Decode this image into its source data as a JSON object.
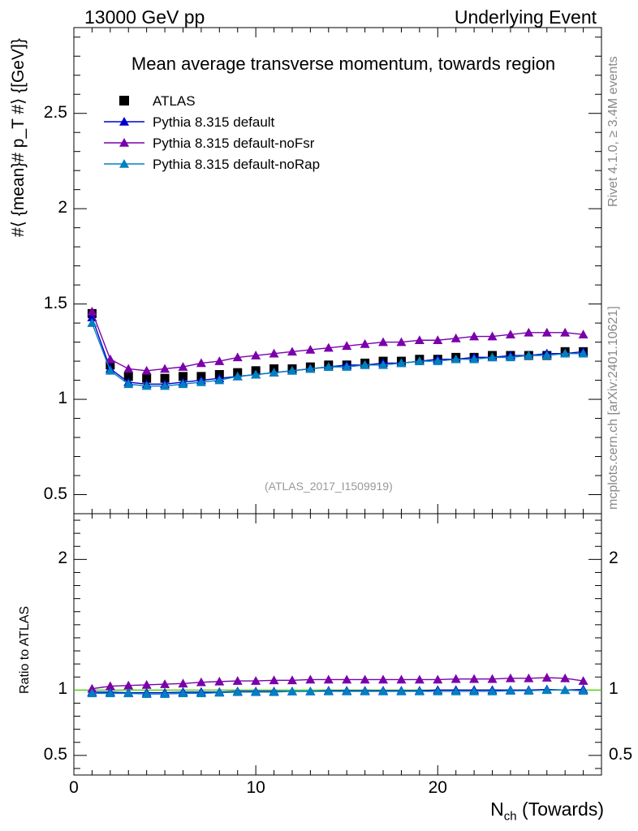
{
  "header": {
    "left": "13000 GeV pp",
    "right": "Underlying Event"
  },
  "side_text": {
    "top": "Rivet 4.1.0, ≥ 3.4M events",
    "bottom": "mcplots.cern.ch [arXiv:2401.10621]"
  },
  "reference_label": "(ATLAS_2017_I1509919)",
  "chart_data": {
    "type": "scatter",
    "title": "Mean average transverse momentum, towards region",
    "xlabel_main": "N",
    "xlabel_sub": "ch",
    "xlabel_suffix": " (Towards)",
    "ylabel": "#⟨ {mean}# p_T #⟩ {[GeV]}",
    "ratio_ylabel": "Ratio to ATLAS",
    "xlim": [
      0,
      29
    ],
    "ylim": [
      0.4,
      2.95
    ],
    "ratio_ylim": [
      0.35,
      2.35
    ],
    "x_ticks": [
      0,
      10,
      20
    ],
    "x_tick_labels": [
      "0",
      "10",
      "20"
    ],
    "y_ticks": [
      0.5,
      1,
      1.5,
      2,
      2.5
    ],
    "y_tick_labels": [
      "0.5",
      "1",
      "1.5",
      "2",
      "2.5"
    ],
    "ratio_ticks": [
      0.5,
      1,
      2
    ],
    "ratio_tick_labels": [
      "0.5",
      "1",
      "2"
    ],
    "x": [
      1,
      2,
      3,
      4,
      5,
      6,
      7,
      8,
      9,
      10,
      11,
      12,
      13,
      14,
      15,
      16,
      17,
      18,
      19,
      20,
      21,
      22,
      23,
      24,
      25,
      26,
      27,
      28
    ],
    "series": [
      {
        "name": "ATLAS",
        "color": "#000000",
        "marker": "square",
        "values": [
          1.45,
          1.18,
          1.12,
          1.11,
          1.11,
          1.12,
          1.12,
          1.13,
          1.14,
          1.15,
          1.16,
          1.16,
          1.17,
          1.18,
          1.18,
          1.19,
          1.2,
          1.2,
          1.21,
          1.21,
          1.22,
          1.22,
          1.23,
          1.23,
          1.23,
          1.23,
          1.25,
          1.25
        ]
      },
      {
        "name": "Pythia 8.315 default",
        "color": "#0000cc",
        "marker": "triangle",
        "values": [
          1.43,
          1.16,
          1.09,
          1.08,
          1.08,
          1.09,
          1.1,
          1.11,
          1.12,
          1.13,
          1.14,
          1.15,
          1.16,
          1.17,
          1.18,
          1.18,
          1.19,
          1.19,
          1.2,
          1.21,
          1.21,
          1.22,
          1.22,
          1.23,
          1.23,
          1.24,
          1.24,
          1.25
        ]
      },
      {
        "name": "Pythia 8.315 default-noFsr",
        "color": "#7a00aa",
        "marker": "triangle",
        "values": [
          1.46,
          1.21,
          1.16,
          1.15,
          1.16,
          1.17,
          1.19,
          1.2,
          1.22,
          1.23,
          1.24,
          1.25,
          1.26,
          1.27,
          1.28,
          1.29,
          1.3,
          1.3,
          1.31,
          1.31,
          1.32,
          1.33,
          1.33,
          1.34,
          1.35,
          1.35,
          1.35,
          1.34
        ]
      },
      {
        "name": "Pythia 8.315 default-noRap",
        "color": "#0080c0",
        "marker": "triangle",
        "values": [
          1.4,
          1.15,
          1.08,
          1.07,
          1.07,
          1.08,
          1.09,
          1.1,
          1.12,
          1.13,
          1.14,
          1.15,
          1.16,
          1.17,
          1.17,
          1.18,
          1.18,
          1.19,
          1.2,
          1.2,
          1.21,
          1.21,
          1.22,
          1.22,
          1.23,
          1.23,
          1.24,
          1.24
        ]
      }
    ],
    "ratio_series": [
      {
        "name": "Pythia 8.315 default",
        "color": "#0000cc",
        "values": [
          0.985,
          0.985,
          0.98,
          0.98,
          0.98,
          0.985,
          0.985,
          0.985,
          0.99,
          0.99,
          0.99,
          0.99,
          0.99,
          0.995,
          0.995,
          0.995,
          0.995,
          0.995,
          0.995,
          1.0,
          1.0,
          1.0,
          1.0,
          1.0,
          1.0,
          1.005,
          1.0,
          1.005
        ]
      },
      {
        "name": "Pythia 8.315 default-noFsr",
        "color": "#7a00aa",
        "values": [
          1.01,
          1.03,
          1.035,
          1.04,
          1.045,
          1.05,
          1.06,
          1.065,
          1.07,
          1.07,
          1.075,
          1.075,
          1.08,
          1.08,
          1.08,
          1.08,
          1.08,
          1.08,
          1.08,
          1.08,
          1.085,
          1.085,
          1.085,
          1.09,
          1.09,
          1.095,
          1.09,
          1.07
        ]
      },
      {
        "name": "Pythia 8.315 default-noRap",
        "color": "#0080c0",
        "values": [
          0.975,
          0.975,
          0.975,
          0.97,
          0.97,
          0.975,
          0.975,
          0.98,
          0.985,
          0.985,
          0.985,
          0.99,
          0.99,
          0.99,
          0.99,
          0.99,
          0.99,
          0.99,
          0.99,
          0.99,
          0.99,
          0.99,
          0.99,
          0.995,
          0.995,
          1.0,
          1.0,
          0.995
        ]
      }
    ]
  }
}
